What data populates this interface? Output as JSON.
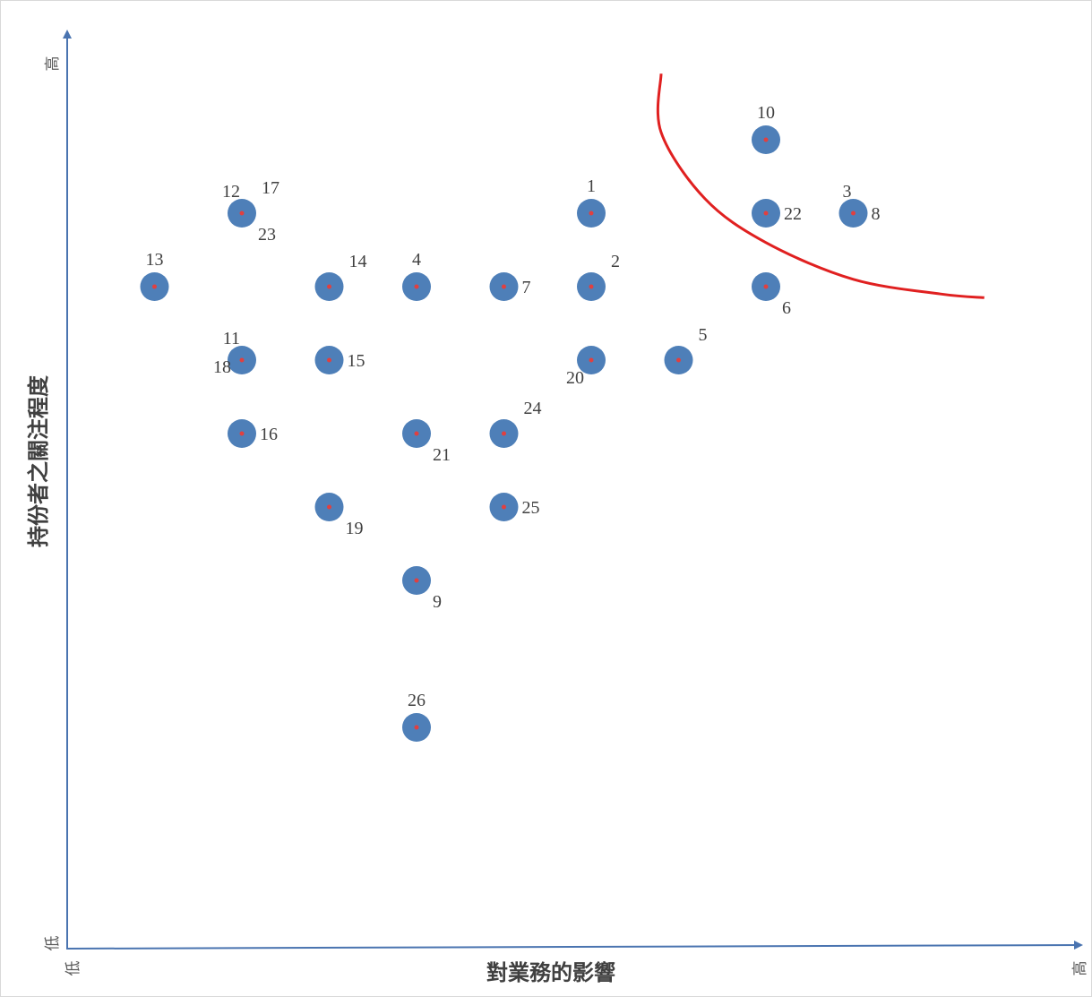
{
  "chart_data": {
    "type": "scatter",
    "title": "",
    "xlabel": "對業務的影響",
    "ylabel": "持份者之關注程度",
    "x_ticks": {
      "low": "低",
      "high": "高"
    },
    "y_ticks": {
      "low": "低",
      "high": "高"
    },
    "xlim": [
      0,
      11
    ],
    "ylim": [
      0,
      13
    ],
    "grid": false,
    "colors": {
      "point": "#4e7fb8",
      "center": "#e04040",
      "axis": "#4a74b0",
      "curve": "#e02020",
      "label": "#404040"
    },
    "points": [
      {
        "x": 1,
        "y": 9,
        "labels": [
          {
            "text": "13",
            "pos": "n"
          }
        ]
      },
      {
        "x": 2,
        "y": 10,
        "labels": [
          {
            "text": "12",
            "pos": "nw"
          },
          {
            "text": "17",
            "pos": "ne"
          },
          {
            "text": "23",
            "pos": "se"
          }
        ]
      },
      {
        "x": 2,
        "y": 8,
        "labels": [
          {
            "text": "11",
            "pos": "nw"
          },
          {
            "text": "18",
            "pos": "w"
          }
        ]
      },
      {
        "x": 2,
        "y": 7,
        "labels": [
          {
            "text": "16",
            "pos": "e"
          }
        ]
      },
      {
        "x": 3,
        "y": 9,
        "labels": [
          {
            "text": "14",
            "pos": "ne"
          }
        ]
      },
      {
        "x": 3,
        "y": 8,
        "labels": [
          {
            "text": "15",
            "pos": "e"
          }
        ]
      },
      {
        "x": 3,
        "y": 6,
        "labels": [
          {
            "text": "19",
            "pos": "se"
          }
        ]
      },
      {
        "x": 4,
        "y": 9,
        "labels": [
          {
            "text": "4",
            "pos": "n"
          }
        ]
      },
      {
        "x": 4,
        "y": 7,
        "labels": [
          {
            "text": "21",
            "pos": "se"
          }
        ]
      },
      {
        "x": 4,
        "y": 5,
        "labels": [
          {
            "text": "9",
            "pos": "se"
          }
        ]
      },
      {
        "x": 4,
        "y": 3,
        "labels": [
          {
            "text": "26",
            "pos": "n"
          }
        ]
      },
      {
        "x": 5,
        "y": 9,
        "labels": [
          {
            "text": "7",
            "pos": "e"
          }
        ]
      },
      {
        "x": 5,
        "y": 7,
        "labels": [
          {
            "text": "24",
            "pos": "ne"
          }
        ]
      },
      {
        "x": 5,
        "y": 6,
        "labels": [
          {
            "text": "25",
            "pos": "e"
          }
        ]
      },
      {
        "x": 6,
        "y": 10,
        "labels": [
          {
            "text": "1",
            "pos": "n"
          }
        ]
      },
      {
        "x": 6,
        "y": 9,
        "labels": [
          {
            "text": "2",
            "pos": "ne"
          }
        ]
      },
      {
        "x": 6,
        "y": 8,
        "labels": [
          {
            "text": "20",
            "pos": "sw"
          }
        ]
      },
      {
        "x": 7,
        "y": 8,
        "labels": [
          {
            "text": "5",
            "pos": "ne"
          }
        ]
      },
      {
        "x": 8,
        "y": 11,
        "labels": [
          {
            "text": "10",
            "pos": "n"
          }
        ]
      },
      {
        "x": 8,
        "y": 10,
        "labels": [
          {
            "text": "22",
            "pos": "e"
          }
        ]
      },
      {
        "x": 8,
        "y": 9,
        "labels": [
          {
            "text": "6",
            "pos": "se"
          }
        ]
      },
      {
        "x": 9,
        "y": 10,
        "labels": [
          {
            "text": "3",
            "pos": "nw"
          },
          {
            "text": "8",
            "pos": "e"
          }
        ]
      }
    ],
    "threshold_curve": [
      [
        6.8,
        11.9
      ],
      [
        6.8,
        11.1
      ],
      [
        7.3,
        10.2
      ],
      [
        8.0,
        9.6
      ],
      [
        9.0,
        9.1
      ],
      [
        10.0,
        8.9
      ],
      [
        10.5,
        8.85
      ]
    ]
  }
}
